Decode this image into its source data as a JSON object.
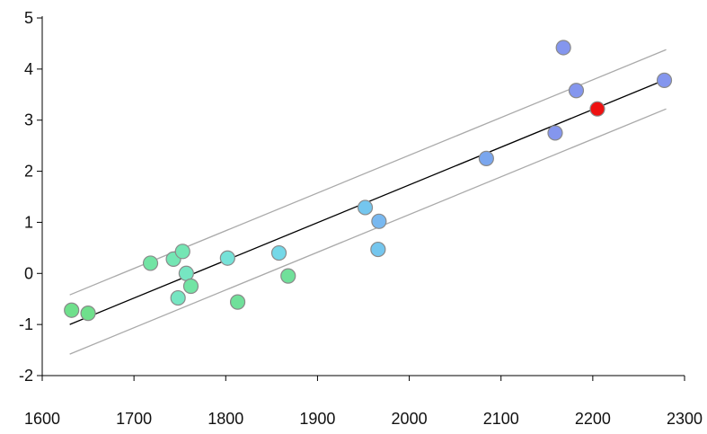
{
  "chart_data": {
    "type": "scatter",
    "title": "",
    "xlabel": "",
    "ylabel": "",
    "xlim": [
      1600,
      2300
    ],
    "ylim": [
      -2,
      5
    ],
    "x_ticks": [
      1600,
      1700,
      1800,
      1900,
      2000,
      2100,
      2200,
      2300
    ],
    "y_ticks": [
      -2,
      -1,
      0,
      1,
      2,
      3,
      4,
      5
    ],
    "grid": false,
    "legend": "none",
    "points": [
      {
        "x": 1632,
        "y": -0.72,
        "color": "#6fe08c"
      },
      {
        "x": 1650,
        "y": -0.78,
        "color": "#6fe08c"
      },
      {
        "x": 1718,
        "y": 0.2,
        "color": "#72e4a4"
      },
      {
        "x": 1743,
        "y": 0.28,
        "color": "#74e6b4"
      },
      {
        "x": 1748,
        "y": -0.48,
        "color": "#76e6c2"
      },
      {
        "x": 1753,
        "y": 0.43,
        "color": "#74e6b4"
      },
      {
        "x": 1757,
        "y": 0.0,
        "color": "#76e6c2"
      },
      {
        "x": 1762,
        "y": -0.25,
        "color": "#72e4a4"
      },
      {
        "x": 1802,
        "y": 0.3,
        "color": "#76e2d8"
      },
      {
        "x": 1813,
        "y": -0.56,
        "color": "#70e09a"
      },
      {
        "x": 1858,
        "y": 0.4,
        "color": "#74d8e8"
      },
      {
        "x": 1868,
        "y": -0.05,
        "color": "#70e09a"
      },
      {
        "x": 1952,
        "y": 1.29,
        "color": "#74c6ee"
      },
      {
        "x": 1967,
        "y": 1.02,
        "color": "#78b8f0"
      },
      {
        "x": 1966,
        "y": 0.47,
        "color": "#74c6ee"
      },
      {
        "x": 2084,
        "y": 2.25,
        "color": "#7aa6ee"
      },
      {
        "x": 2159,
        "y": 2.75,
        "color": "#8496ee"
      },
      {
        "x": 2168,
        "y": 4.42,
        "color": "#8496ee"
      },
      {
        "x": 2182,
        "y": 3.58,
        "color": "#8496ee"
      },
      {
        "x": 2205,
        "y": 3.22,
        "color": "#ee1111"
      },
      {
        "x": 2278,
        "y": 3.78,
        "color": "#8496ee"
      }
    ],
    "fit_line": {
      "x": [
        1630,
        2280
      ],
      "y": [
        -1.0,
        3.8
      ],
      "color": "#000000"
    },
    "band_upper": {
      "x": [
        1630,
        2280
      ],
      "y": [
        -0.42,
        4.38
      ],
      "color": "#aaaaaa"
    },
    "band_lower": {
      "x": [
        1630,
        2280
      ],
      "y": [
        -1.58,
        3.22
      ],
      "color": "#aaaaaa"
    },
    "colors": {
      "axis": "#000000",
      "point_stroke": "#8a8a8a",
      "text": "#111111"
    }
  }
}
